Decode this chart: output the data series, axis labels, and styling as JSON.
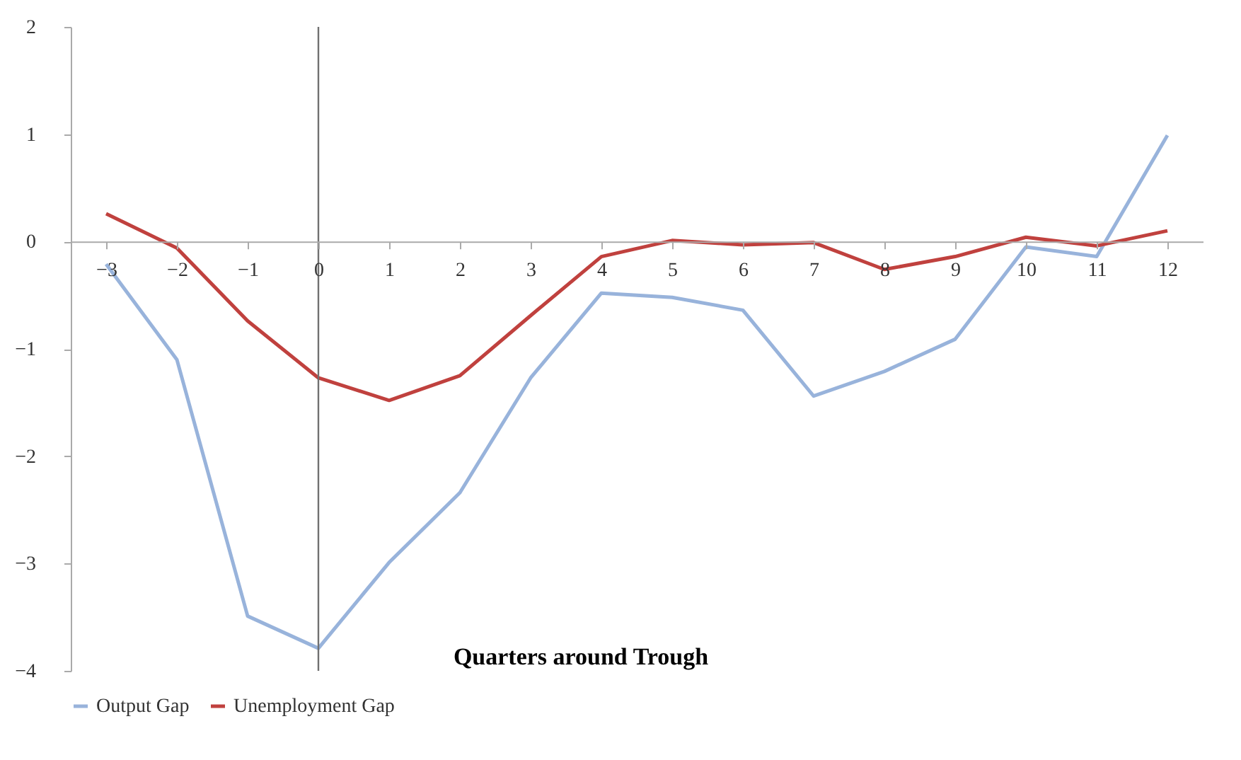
{
  "chart_data": {
    "type": "line",
    "xlabel": "Quarters around Trough",
    "x": [
      -3,
      -2,
      -1,
      0,
      1,
      2,
      3,
      4,
      5,
      6,
      7,
      8,
      9,
      10,
      11,
      12
    ],
    "series": [
      {
        "name": "Output Gap",
        "color": "#98b3db",
        "values": [
          -0.21,
          -1.1,
          -3.49,
          -3.79,
          -2.99,
          -2.34,
          -1.27,
          -0.48,
          -0.52,
          -0.64,
          -1.44,
          -1.21,
          -0.91,
          -0.05,
          -0.14,
          0.99
        ]
      },
      {
        "name": "Unemployment Gap",
        "color": "#c0413e",
        "values": [
          0.26,
          -0.06,
          -0.74,
          -1.27,
          -1.48,
          -1.25,
          -0.69,
          -0.14,
          0.01,
          -0.03,
          -0.01,
          -0.26,
          -0.14,
          0.04,
          -0.04,
          0.1
        ]
      }
    ],
    "xlim": [
      -3.5,
      12.5
    ],
    "xticks": [
      -3,
      -2,
      -1,
      0,
      1,
      2,
      3,
      4,
      5,
      6,
      7,
      8,
      9,
      10,
      11,
      12
    ],
    "ylim": [
      -4,
      2
    ],
    "yticks": [
      -4,
      -3,
      -2,
      -1,
      0,
      1,
      2
    ],
    "ref_lines": [
      {
        "axis": "x",
        "value": 0,
        "color": "#707070"
      }
    ],
    "grid": false,
    "legend": "bottom",
    "marker": "none",
    "line_style": "solid"
  }
}
